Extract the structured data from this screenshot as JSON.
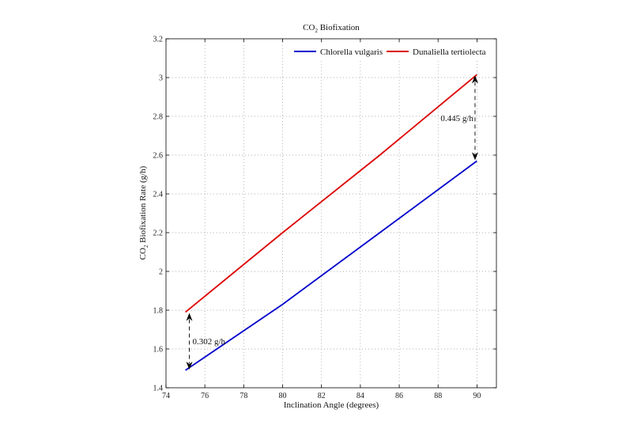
{
  "chart_data": {
    "type": "line",
    "title_main": "CO",
    "title_sub": "2",
    "title_rest": " Biofixation",
    "xlabel": "Inclination Angle (degrees)",
    "ylabel_main": "CO",
    "ylabel_sub": "2",
    "ylabel_rest": " Biofixation Rate (g/h)",
    "xlim": [
      74,
      91
    ],
    "ylim": [
      1.4,
      3.2
    ],
    "xticks": [
      74,
      76,
      78,
      80,
      82,
      84,
      86,
      88,
      90
    ],
    "yticks": [
      1.4,
      1.6,
      1.8,
      2,
      2.2,
      2.4,
      2.6,
      2.8,
      3,
      3.2
    ],
    "grid": true,
    "legend_position": "top-right",
    "series": [
      {
        "name": "Chlorella vulgaris",
        "color": "#0000cc",
        "x": [
          75,
          80,
          85,
          90
        ],
        "y": [
          1.49,
          1.83,
          2.2,
          2.57
        ]
      },
      {
        "name": "Dunaliella tertiolecta",
        "color": "#dd0000",
        "x": [
          75,
          80,
          85,
          90
        ],
        "y": [
          1.79,
          2.2,
          2.6,
          3.015
        ]
      }
    ],
    "annotations": [
      {
        "text": "0.302 g/h",
        "x": 75.2,
        "y_from": 1.49,
        "y_to": 1.79
      },
      {
        "text": "0.445 g/h",
        "x": 89.9,
        "y_from": 2.57,
        "y_to": 3.015
      }
    ]
  }
}
